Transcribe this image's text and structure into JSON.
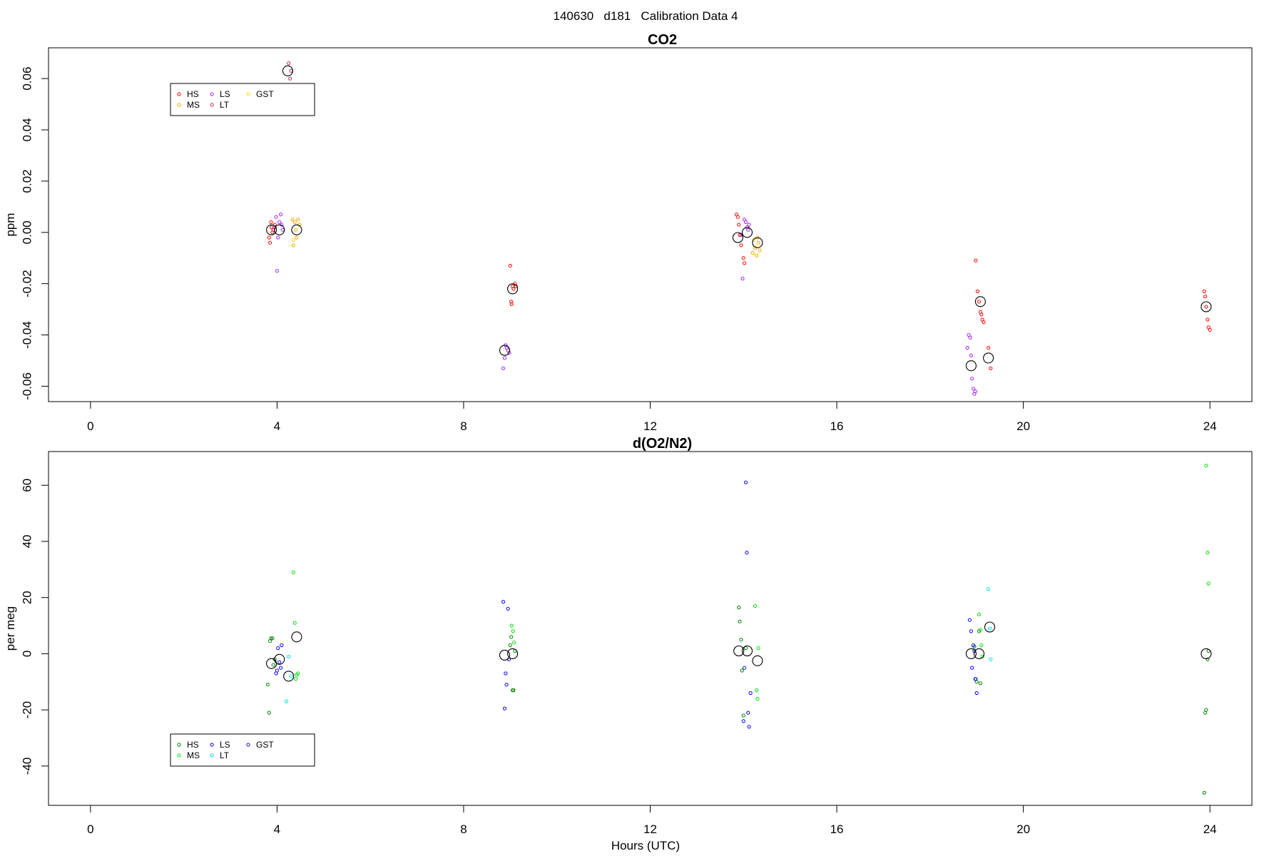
{
  "page_title": "140630   d181   Calibration Data 4",
  "xlabel": "Hours (UTC)",
  "chart_data": [
    {
      "type": "scatter",
      "title": "CO2",
      "ylabel": "ppm",
      "xlim": [
        -0.9,
        24.9
      ],
      "ylim": [
        -0.066,
        0.072
      ],
      "xticks": [
        0,
        4,
        8,
        12,
        16,
        20,
        24
      ],
      "xtick_labels": [
        "0",
        "4",
        "8",
        "12",
        "16",
        "20",
        "24"
      ],
      "yticks": [
        -0.06,
        -0.04,
        -0.02,
        0.0,
        0.02,
        0.04,
        0.06
      ],
      "ytick_labels": [
        "-0.06",
        "-0.04",
        "-0.02",
        "0.00",
        "0.02",
        "0.04",
        "0.06"
      ],
      "legend": {
        "placement": "top-left",
        "entries": [
          {
            "label": "HS",
            "color": "#ff0000"
          },
          {
            "label": "MS",
            "color": "#ffa500"
          },
          {
            "label": "LS",
            "color": "#a020f0"
          },
          {
            "label": "LT",
            "color": "#b03060"
          },
          {
            "label": "GST",
            "color": "#ffe000"
          }
        ]
      },
      "series": [
        {
          "label": "HS",
          "color": "#ff0000",
          "x": [
            3.83,
            3.85,
            3.87,
            3.88,
            3.9,
            3.92,
            3.95,
            9.0,
            9.02,
            9.03,
            9.05,
            9.07,
            9.1,
            9.12,
            13.85,
            13.88,
            13.9,
            13.92,
            13.95,
            14.0,
            14.02,
            18.98,
            19.02,
            19.05,
            19.08,
            19.1,
            19.12,
            19.15,
            19.25,
            19.3,
            23.88,
            23.9,
            23.92,
            23.95,
            23.97,
            24.0
          ],
          "y": [
            -0.002,
            -0.004,
            0.004,
            0.002,
            0.0,
            0.001,
            0.003,
            -0.013,
            -0.027,
            -0.028,
            -0.021,
            -0.022,
            -0.02,
            -0.021,
            0.007,
            0.006,
            0.003,
            -0.001,
            -0.005,
            -0.01,
            -0.012,
            -0.011,
            -0.023,
            -0.027,
            -0.031,
            -0.032,
            -0.034,
            -0.035,
            -0.045,
            -0.053,
            -0.023,
            -0.025,
            -0.029,
            -0.034,
            -0.037,
            -0.038
          ]
        },
        {
          "label": "MS",
          "color": "#ffa500",
          "x": [
            4.33,
            4.35,
            4.38,
            4.4,
            4.42,
            4.45,
            4.48,
            14.2,
            14.25,
            14.28,
            14.3,
            14.32,
            14.35
          ],
          "y": [
            0.005,
            -0.005,
            0.004,
            0.001,
            -0.002,
            0.005,
            0.003,
            -0.008,
            -0.006,
            -0.009,
            -0.002,
            -0.004,
            -0.007
          ]
        },
        {
          "label": "LS",
          "color": "#a020f0",
          "x": [
            3.95,
            3.98,
            4.0,
            4.02,
            4.05,
            4.08,
            4.1,
            4.12,
            8.85,
            8.88,
            8.9,
            8.92,
            8.95,
            8.98,
            13.95,
            13.98,
            14.02,
            14.05,
            14.08,
            14.1,
            14.12,
            18.8,
            18.83,
            18.86,
            18.88,
            18.9,
            18.93,
            18.95,
            18.97
          ],
          "y": [
            0.002,
            0.006,
            -0.015,
            -0.002,
            0.004,
            0.007,
            0.003,
            0.001,
            -0.053,
            -0.049,
            -0.044,
            -0.045,
            -0.046,
            -0.047,
            -0.001,
            -0.018,
            0.005,
            0.004,
            0.002,
            0.001,
            0.003,
            -0.045,
            -0.04,
            -0.041,
            -0.048,
            -0.057,
            -0.061,
            -0.063,
            -0.062
          ]
        },
        {
          "label": "LT",
          "color": "#b03060",
          "x": [
            4.25,
            4.28,
            4.3
          ],
          "y": [
            0.066,
            0.06,
            0.063
          ]
        },
        {
          "label": "GST",
          "color": "#ffe000",
          "x": [
            4.35,
            14.22
          ],
          "y": [
            -0.003,
            -0.003
          ]
        },
        {
          "label": "mean",
          "color": "#000000",
          "marker": "large",
          "x": [
            3.88,
            4.05,
            4.23,
            4.42,
            8.88,
            9.05,
            13.88,
            14.08,
            14.3,
            18.88,
            19.08,
            19.25,
            23.92
          ],
          "y": [
            0.001,
            0.001,
            0.063,
            0.001,
            -0.046,
            -0.022,
            -0.002,
            0.0,
            -0.004,
            -0.052,
            -0.027,
            -0.049,
            -0.029
          ]
        }
      ]
    },
    {
      "type": "scatter",
      "title": "d(O2/N2)",
      "ylabel": "per meg",
      "xlim": [
        -0.9,
        24.9
      ],
      "ylim": [
        -54,
        72
      ],
      "xticks": [
        0,
        4,
        8,
        12,
        16,
        20,
        24
      ],
      "xtick_labels": [
        "0",
        "4",
        "8",
        "12",
        "16",
        "20",
        "24"
      ],
      "yticks": [
        -40,
        -20,
        0,
        20,
        40,
        60
      ],
      "ytick_labels": [
        "-40",
        "-20",
        "0",
        "20",
        "40",
        "60"
      ],
      "legend": {
        "placement": "bottom-left",
        "entries": [
          {
            "label": "HS",
            "color": "#008000"
          },
          {
            "label": "MS",
            "color": "#00e000"
          },
          {
            "label": "LS",
            "color": "#0000ff"
          },
          {
            "label": "LT",
            "color": "#00e0e0"
          },
          {
            "label": "GST",
            "color": "#1c1caa"
          }
        ]
      },
      "series": [
        {
          "label": "HS",
          "color": "#008000",
          "x": [
            3.8,
            3.83,
            3.85,
            3.87,
            3.9,
            3.92,
            3.95,
            9.0,
            9.02,
            9.05,
            9.07,
            9.1,
            13.9,
            13.92,
            13.95,
            13.97,
            14.0,
            14.05,
            18.95,
            18.98,
            19.0,
            19.05,
            19.08,
            23.88,
            23.9,
            23.92,
            23.95,
            23.97
          ],
          "y": [
            -11,
            -21,
            4.5,
            5.5,
            5.5,
            -4,
            -2,
            3,
            6,
            -13,
            -13,
            1,
            16.5,
            11.5,
            5,
            -6,
            -22,
            2,
            2.5,
            -9,
            -10,
            8,
            -10.5,
            -49.5,
            -21,
            -20,
            -2,
            1
          ]
        },
        {
          "label": "MS",
          "color": "#00e000",
          "x": [
            4.35,
            4.38,
            4.4,
            4.42,
            4.45,
            9.03,
            9.06,
            9.08,
            14.25,
            14.28,
            14.3,
            14.32,
            19.05,
            19.08,
            19.1,
            19.12,
            23.92,
            23.95,
            23.97
          ],
          "y": [
            29,
            11,
            -9,
            -7.5,
            -7,
            10,
            8,
            4,
            17,
            -13,
            -16,
            2,
            14,
            8.5,
            3,
            -1,
            67,
            36,
            25
          ]
        },
        {
          "label": "LS",
          "color": "#0000ff",
          "x": [
            3.98,
            4.0,
            4.02,
            4.05,
            4.08,
            4.1,
            8.85,
            8.88,
            8.9,
            8.92,
            8.95,
            8.97,
            14.0,
            14.05,
            14.07,
            14.1,
            14.12,
            14.15,
            18.85,
            18.88,
            18.9,
            18.93,
            18.95,
            18.97,
            19.0
          ],
          "y": [
            -7,
            -6,
            2,
            -3,
            -5,
            3,
            18.5,
            -19.5,
            -7,
            -11,
            16,
            -2,
            -24,
            61,
            36,
            -21,
            -26,
            -14,
            12,
            8,
            -5,
            3,
            1,
            -9,
            -14
          ]
        },
        {
          "label": "LT",
          "color": "#00e0e0",
          "x": [
            4.2,
            4.25,
            4.3,
            19.25,
            19.28,
            19.3
          ],
          "y": [
            -17,
            -1,
            -8,
            23,
            9,
            -2
          ]
        },
        {
          "label": "GST",
          "color": "#1c1caa",
          "x": [
            14.02
          ],
          "y": [
            -5
          ]
        },
        {
          "label": "mean",
          "color": "#000000",
          "marker": "large",
          "x": [
            3.88,
            4.05,
            4.25,
            4.42,
            8.88,
            9.05,
            13.9,
            14.08,
            14.3,
            18.88,
            19.05,
            19.28,
            23.92
          ],
          "y": [
            -3.5,
            -2,
            -8,
            6,
            -0.5,
            0,
            1,
            1,
            -2.5,
            0,
            0,
            9.5,
            0
          ]
        }
      ]
    }
  ]
}
